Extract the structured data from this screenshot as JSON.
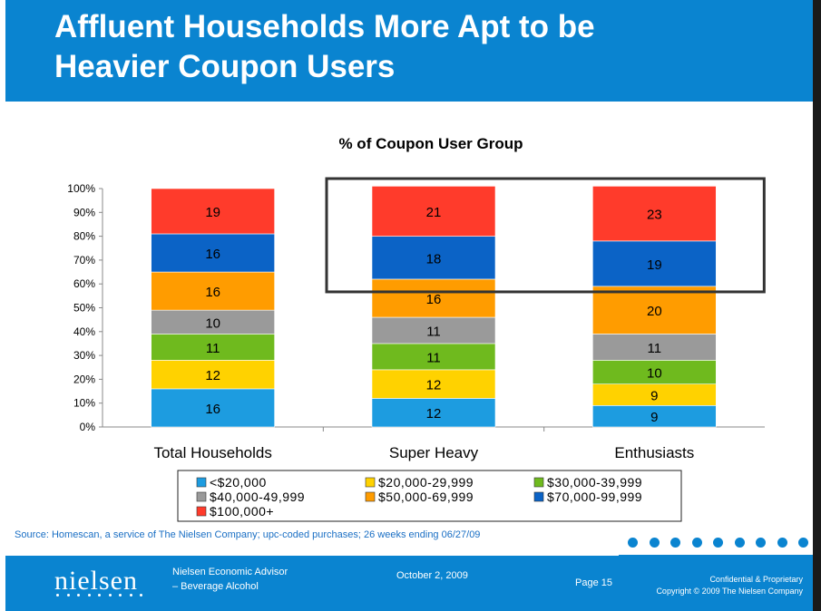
{
  "slide": {
    "title_line1": "Affluent Households More Apt to be",
    "title_line2": "Heavier Coupon Users"
  },
  "chart_data": {
    "type": "bar",
    "stacked": true,
    "title": "% of Coupon User Group",
    "categories": [
      "Total Households",
      "Super Heavy",
      "Enthusiasts"
    ],
    "y_ticks": [
      "0%",
      "10%",
      "20%",
      "30%",
      "40%",
      "50%",
      "60%",
      "70%",
      "80%",
      "90%",
      "100%"
    ],
    "ylim": [
      0,
      100
    ],
    "legend_position": "bottom",
    "series": [
      {
        "name": "<$20,000",
        "color": "#1d9ce0",
        "values": [
          16,
          12,
          9
        ]
      },
      {
        "name": "$20,000-29,999",
        "color": "#ffd200",
        "values": [
          12,
          12,
          9
        ]
      },
      {
        "name": "$30,000-39,999",
        "color": "#6fba1e",
        "values": [
          11,
          11,
          10
        ]
      },
      {
        "name": "$40,000-49,999",
        "color": "#9a9a9a",
        "values": [
          10,
          11,
          11
        ]
      },
      {
        "name": "$50,000-69,999",
        "color": "#ff9c00",
        "values": [
          16,
          16,
          20
        ]
      },
      {
        "name": "$70,000-99,999",
        "color": "#0b63c6",
        "values": [
          16,
          18,
          19
        ]
      },
      {
        "name": "$100,000+",
        "color": "#ff3b2b",
        "values": [
          19,
          21,
          23
        ]
      }
    ],
    "highlight": {
      "categories": [
        "Super Heavy",
        "Enthusiasts"
      ],
      "series": [
        "$70,000-99,999",
        "$100,000+"
      ]
    }
  },
  "source": "Source: Homescan, a service of The Nielsen Company; upc-coded purchases; 26 weeks ending 06/27/09",
  "footer": {
    "logo": "nielsen",
    "report_line1": "Nielsen Economic Advisor",
    "report_line2": "– Beverage Alcohol",
    "date": "October 2, 2009",
    "page": "Page 15",
    "confidential": "Confidential & Proprietary",
    "copyright": "Copyright © 2009 The Nielsen Company"
  }
}
